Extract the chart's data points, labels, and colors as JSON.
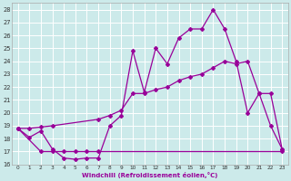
{
  "xlabel": "Windchill (Refroidissement éolien,°C)",
  "xlim": [
    -0.5,
    23.5
  ],
  "ylim": [
    16,
    28.5
  ],
  "yticks": [
    16,
    17,
    18,
    19,
    20,
    21,
    22,
    23,
    24,
    25,
    26,
    27,
    28
  ],
  "xticks": [
    0,
    1,
    2,
    3,
    4,
    5,
    6,
    7,
    8,
    9,
    10,
    11,
    12,
    13,
    14,
    15,
    16,
    17,
    18,
    19,
    20,
    21,
    22,
    23
  ],
  "background_color": "#cceaea",
  "grid_color": "#bbdddd",
  "line_color": "#990099",
  "line1_x": [
    0,
    1,
    2,
    3,
    4,
    5,
    6,
    7,
    8,
    9,
    10,
    11,
    12,
    13,
    14,
    15,
    16,
    17,
    18,
    19,
    20,
    21,
    22,
    23
  ],
  "line1_y": [
    18.8,
    18.1,
    18.6,
    17.2,
    16.5,
    16.4,
    16.5,
    16.5,
    19.0,
    19.8,
    24.8,
    21.6,
    25.0,
    23.8,
    25.8,
    26.5,
    26.5,
    28.0,
    26.5,
    24.0,
    20.0,
    21.5,
    19.0,
    17.2
  ],
  "line2_x": [
    0,
    1,
    2,
    3,
    7,
    8,
    9,
    10,
    11,
    12,
    13,
    14,
    15,
    16,
    17,
    18,
    19,
    20,
    21,
    22,
    23
  ],
  "line2_y": [
    18.8,
    18.8,
    18.9,
    19.0,
    19.5,
    19.8,
    20.2,
    21.5,
    21.5,
    21.8,
    22.0,
    22.5,
    22.8,
    23.0,
    23.5,
    24.0,
    23.8,
    24.0,
    21.5,
    21.5,
    17.2
  ],
  "line3_x": [
    0,
    2,
    3,
    4,
    5,
    6,
    7,
    23
  ],
  "line3_y": [
    18.8,
    17.0,
    17.0,
    17.0,
    17.0,
    17.0,
    17.0,
    17.0
  ]
}
